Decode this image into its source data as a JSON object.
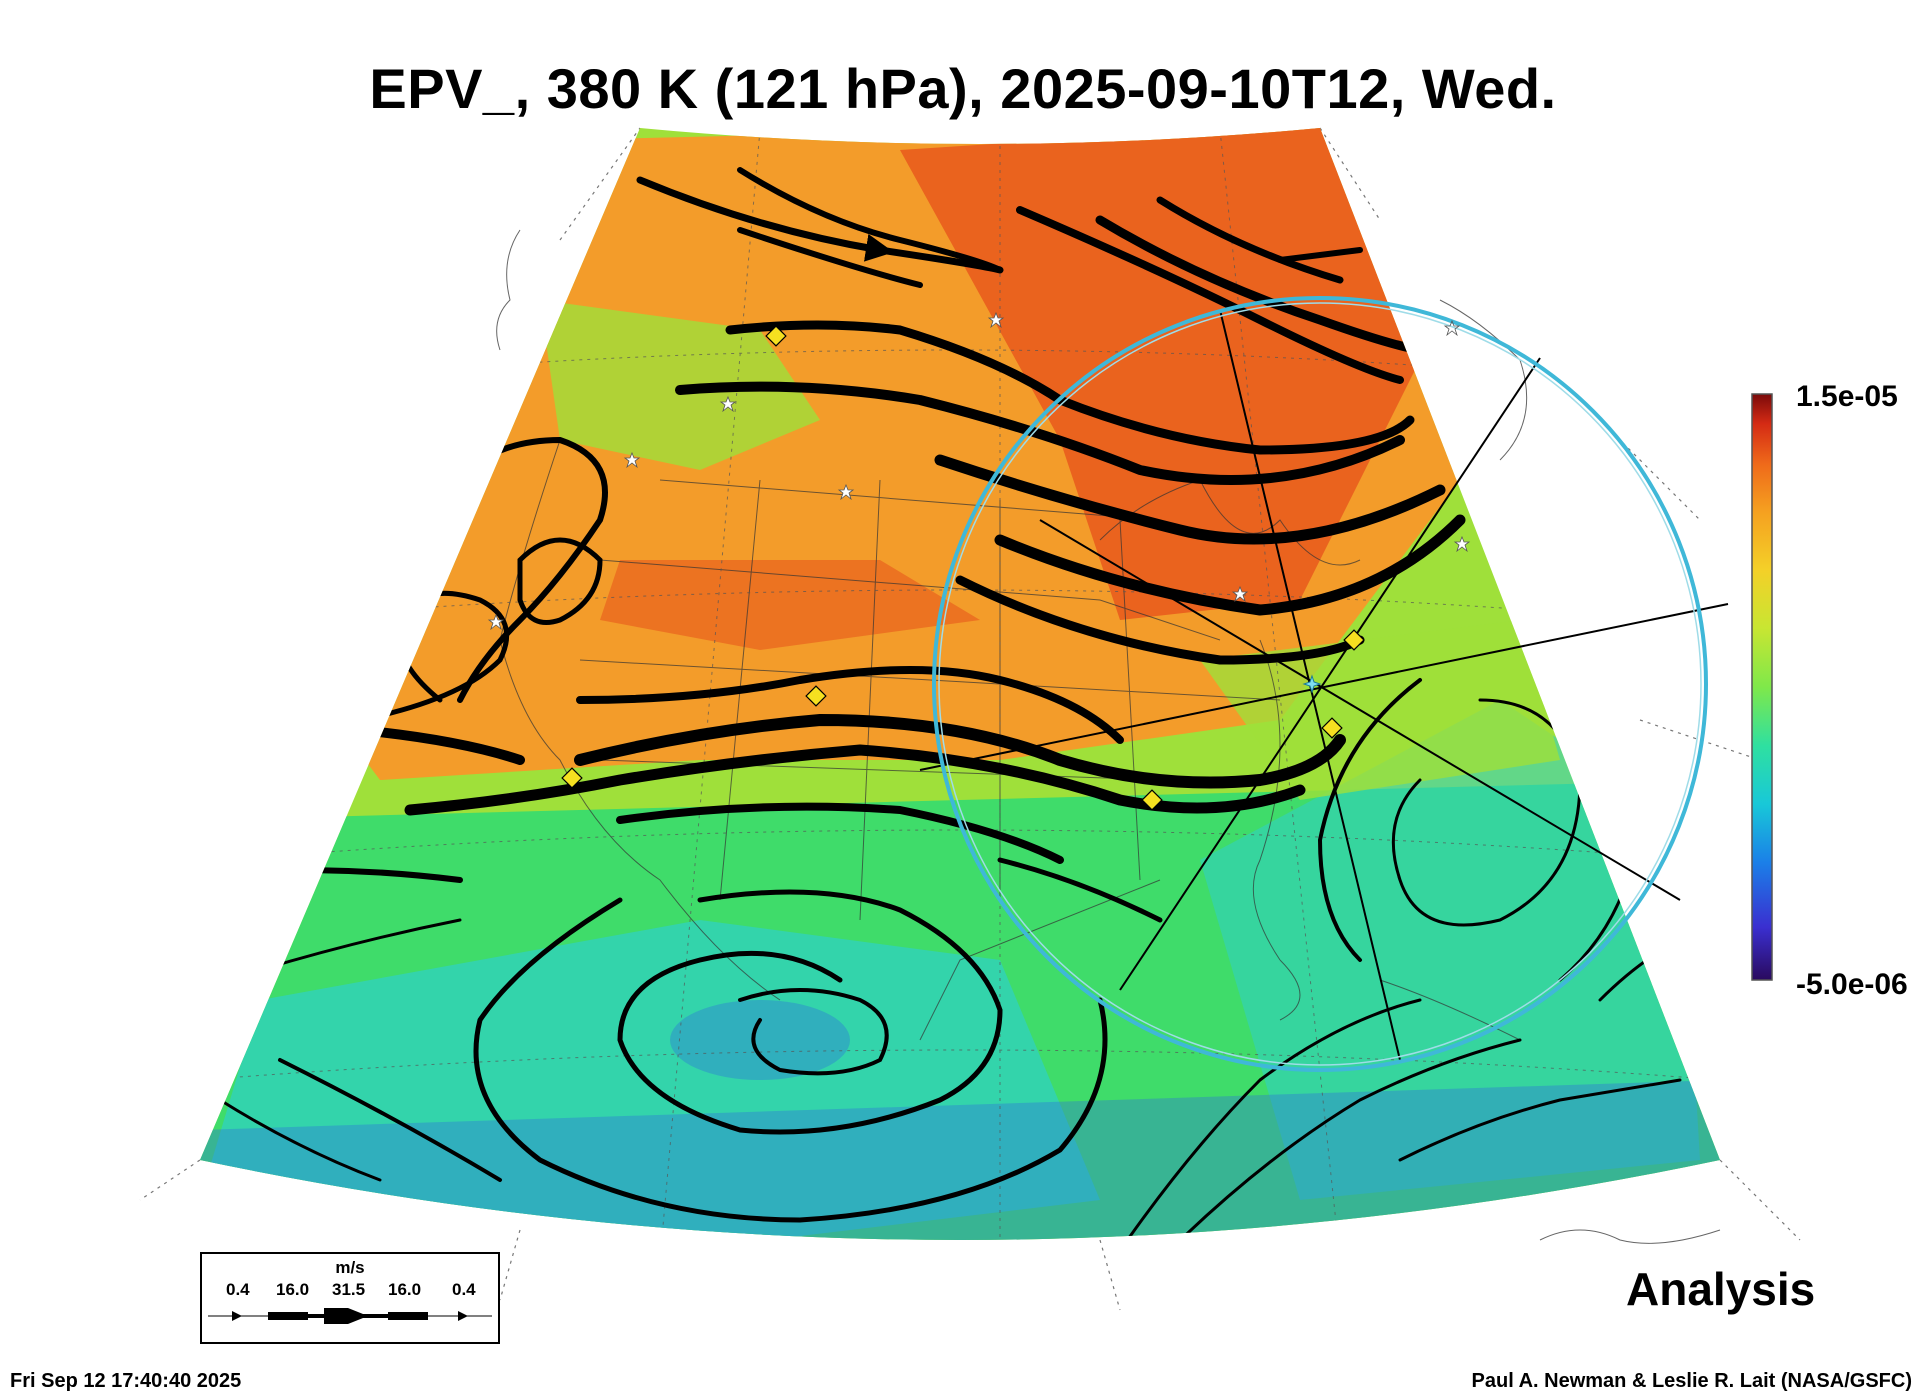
{
  "title": "EPV_, 380 K (121 hPa), 2025-09-10T12, Wed.",
  "colorbar": {
    "max_label": "1.5e-05",
    "min_label": "-5.0e-06",
    "colors": [
      "#2a0a5e",
      "#3a2fd0",
      "#1b7fe8",
      "#18c8d8",
      "#2fe0a0",
      "#7fe84a",
      "#c8e632",
      "#f4d028",
      "#f5a020",
      "#ef6a1a",
      "#d42a14",
      "#7a0a0a"
    ]
  },
  "legend": {
    "unit": "m/s",
    "values": [
      "0.4",
      "16.0",
      "31.5",
      "16.0",
      "0.4"
    ]
  },
  "analysis_label": "Analysis",
  "footer": {
    "timestamp": "Fri Sep 12 17:40:40 2025",
    "credit": "Paul A. Newman & Leslie R. Lait (NASA/GSFC)"
  },
  "map": {
    "field_colors": {
      "orange": "#f39c2a",
      "red": "#e8591c",
      "green_yellow": "#9fe03a",
      "green": "#3fdc6a",
      "cyan": "#2fd0c8",
      "blue": "#2a6ae0"
    },
    "circle_color": "#3fb8d8",
    "streamline_color": "#000000",
    "marker_symbols": [
      "diamond-icon",
      "star-icon"
    ]
  }
}
